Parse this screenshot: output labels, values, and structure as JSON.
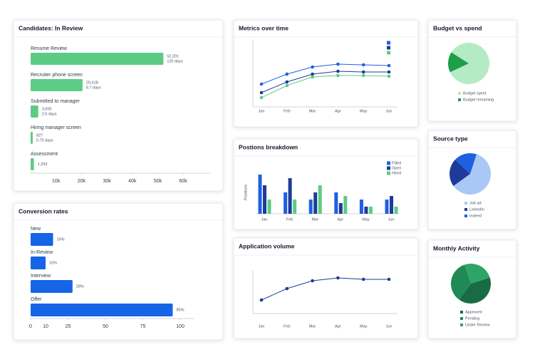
{
  "chart_data": [
    {
      "type": "bar",
      "horizontal": true,
      "title": "Candidates: In Review",
      "categories": [
        "Resume Review",
        "Recruiter phone screen",
        "Submitted to manager",
        "Hiring manager screen",
        "Assessment"
      ],
      "values": [
        52201,
        20418,
        3000,
        827,
        1293
      ],
      "value_labels": [
        "52,201",
        "20,418",
        "3,000",
        "827",
        "1,293"
      ],
      "sublabels": [
        "120 days",
        "8.7 days",
        "2.5 days",
        "0.75 days",
        null
      ],
      "color": "#5ccc84",
      "xlim": [
        0,
        65000
      ],
      "xticks": [
        {
          "value": 10000,
          "label": "10k"
        },
        {
          "value": 20000,
          "label": "20k"
        },
        {
          "value": 30000,
          "label": "30k"
        },
        {
          "value": 40000,
          "label": "40k"
        },
        {
          "value": 50000,
          "label": "50k"
        },
        {
          "value": 60000,
          "label": "60k"
        }
      ]
    },
    {
      "type": "bar",
      "horizontal": true,
      "title": "Conversion rates",
      "categories": [
        "New",
        "In-Review",
        "Interview",
        "Offer"
      ],
      "values": [
        15,
        10,
        28,
        95
      ],
      "value_labels": [
        "15%",
        "10%",
        "28%",
        "95%"
      ],
      "color": "#1565e6",
      "xlim": [
        0,
        100
      ],
      "xticks": [
        0,
        10,
        25,
        50,
        75,
        100
      ]
    },
    {
      "type": "line",
      "title": "Metrics over time",
      "categories": [
        "Jan",
        "Feb",
        "Mar",
        "Apr",
        "May",
        "Jun"
      ],
      "series": [
        {
          "color": "#1f5fe0",
          "values": [
            32,
            46,
            56,
            60,
            59,
            58
          ]
        },
        {
          "color": "#1e3a9a",
          "values": [
            20,
            35,
            46,
            50,
            49,
            49
          ]
        },
        {
          "color": "#5ccc84",
          "values": [
            13,
            30,
            42,
            44,
            44,
            43
          ]
        }
      ],
      "ylim": [
        0,
        95
      ]
    },
    {
      "type": "bar",
      "title": "Postions breakdown",
      "y_label": "Positions",
      "categories": [
        "Jan",
        "Feb",
        "Mar",
        "Apr",
        "May",
        "Jun"
      ],
      "series": [
        {
          "name": "Filled",
          "color": "#1f5fe0",
          "values": [
            11,
            6,
            4,
            6,
            4,
            4
          ]
        },
        {
          "name": "Open",
          "color": "#1e3a9a",
          "values": [
            8,
            10,
            6,
            3,
            2,
            5
          ]
        },
        {
          "name": "Hired",
          "color": "#5ccc84",
          "values": [
            4,
            4,
            8,
            5,
            2,
            2
          ]
        }
      ],
      "ylim": [
        0,
        12
      ]
    },
    {
      "type": "line",
      "title": "Application volume",
      "categories": [
        "Jan",
        "Feb",
        "Mar",
        "Apr",
        "May",
        "Jun"
      ],
      "series": [
        {
          "color": "#1e3a9a",
          "values": [
            19,
            35,
            46,
            50,
            48,
            48
          ]
        }
      ],
      "ylim": [
        0,
        60
      ]
    },
    {
      "type": "pie",
      "title": "Budget vs spend",
      "categories": [
        "Budget spent",
        "Budget remaining"
      ],
      "values": [
        84,
        16
      ],
      "colors": [
        "#b4ebc4",
        "#1f9e4a"
      ]
    },
    {
      "type": "pie",
      "title": "Source type",
      "categories": [
        "Job ad",
        "LinkedIn",
        "Indeed"
      ],
      "values": [
        60,
        22,
        18
      ],
      "colors": [
        "#a9c8f5",
        "#1e3a9a",
        "#1f5fe0"
      ]
    },
    {
      "type": "pie",
      "title": "Monthly Activity",
      "categories": [
        "Approved",
        "Pending",
        "Under Review"
      ],
      "values": [
        40,
        35,
        25
      ],
      "colors": [
        "#1a6b45",
        "#1f8a55",
        "#2fa468"
      ]
    }
  ]
}
